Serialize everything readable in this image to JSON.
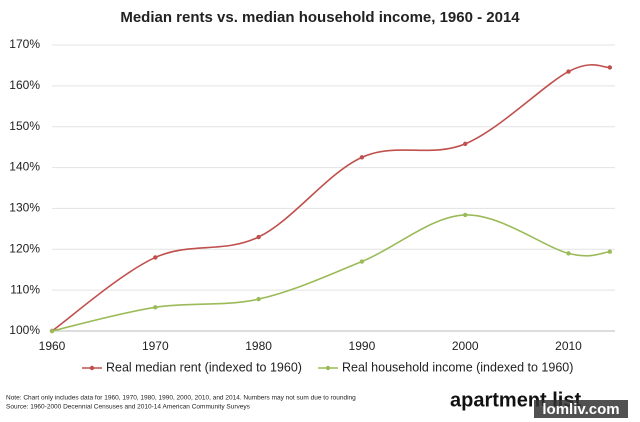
{
  "chart_data": {
    "type": "line",
    "title": "Median rents vs. median household income, 1960 - 2014",
    "x": [
      1960,
      1970,
      1980,
      1990,
      2000,
      2010,
      2014
    ],
    "series": [
      {
        "name": "Real median rent (indexed to 1960)",
        "color": "#c0504d",
        "values": [
          100,
          118,
          123,
          142.5,
          145.8,
          163.5,
          164.5
        ]
      },
      {
        "name": "Real household income (indexed to 1960)",
        "color": "#9bbb59",
        "values": [
          100,
          105.8,
          107.8,
          117,
          128.4,
          119,
          119.4
        ]
      }
    ],
    "xlim": [
      1960,
      2014.5
    ],
    "xticks": [
      1960,
      1970,
      1980,
      1990,
      2000,
      2010
    ],
    "ylim": [
      100,
      170
    ],
    "yticks": [
      {
        "value": 100,
        "label": "100%"
      },
      {
        "value": 110,
        "label": "110%"
      },
      {
        "value": 120,
        "label": "120%"
      },
      {
        "value": 130,
        "label": "130%"
      },
      {
        "value": 140,
        "label": "140%"
      },
      {
        "value": 150,
        "label": "150%"
      },
      {
        "value": 160,
        "label": "160%"
      },
      {
        "value": 170,
        "label": "170%"
      }
    ],
    "grid": true,
    "legend": "bottom",
    "notes": [
      "Note: Chart only includes data for 1960, 1970, 1980, 1990, 2000, 2010, and 2014. Numbers may not sum due to rounding",
      "Source: 1960-2000 Decennial Censuses and 2010-14 American Community Surveys"
    ],
    "logo": "apartment list",
    "watermark": "lomliv.com"
  }
}
